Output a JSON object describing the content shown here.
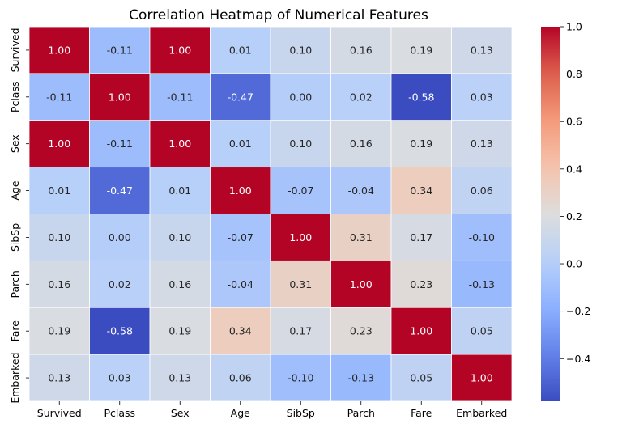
{
  "chart_data": {
    "type": "heatmap",
    "title": "Correlation Heatmap of Numerical Features",
    "labels": [
      "Survived",
      "Pclass",
      "Sex",
      "Age",
      "SibSp",
      "Parch",
      "Fare",
      "Embarked"
    ],
    "values": [
      [
        1.0,
        -0.11,
        1.0,
        0.01,
        0.1,
        0.16,
        0.19,
        0.13
      ],
      [
        -0.11,
        1.0,
        -0.11,
        -0.47,
        0.0,
        0.02,
        -0.58,
        0.03
      ],
      [
        1.0,
        -0.11,
        1.0,
        0.01,
        0.1,
        0.16,
        0.19,
        0.13
      ],
      [
        0.01,
        -0.47,
        0.01,
        1.0,
        -0.07,
        -0.04,
        0.34,
        0.06
      ],
      [
        0.1,
        0.0,
        0.1,
        -0.07,
        1.0,
        0.31,
        0.17,
        -0.1
      ],
      [
        0.16,
        0.02,
        0.16,
        -0.04,
        0.31,
        1.0,
        0.23,
        -0.13
      ],
      [
        0.19,
        -0.58,
        0.19,
        0.34,
        0.17,
        0.23,
        1.0,
        0.05
      ],
      [
        0.13,
        0.03,
        0.13,
        0.06,
        -0.1,
        -0.13,
        0.05,
        1.0
      ]
    ],
    "colormap": "coolwarm",
    "vmin": -0.58,
    "vmax": 1.0,
    "colorbar_ticks": [
      "1.0",
      "0.8",
      "0.6",
      "0.4",
      "0.2",
      "0.0",
      "−0.2",
      "−0.4"
    ],
    "colorbar_tick_values": [
      1.0,
      0.8,
      0.6,
      0.4,
      0.2,
      0.0,
      -0.2,
      -0.4
    ],
    "annotation_format": "2 decimals",
    "grid": true,
    "legend": "colorbar-right"
  }
}
